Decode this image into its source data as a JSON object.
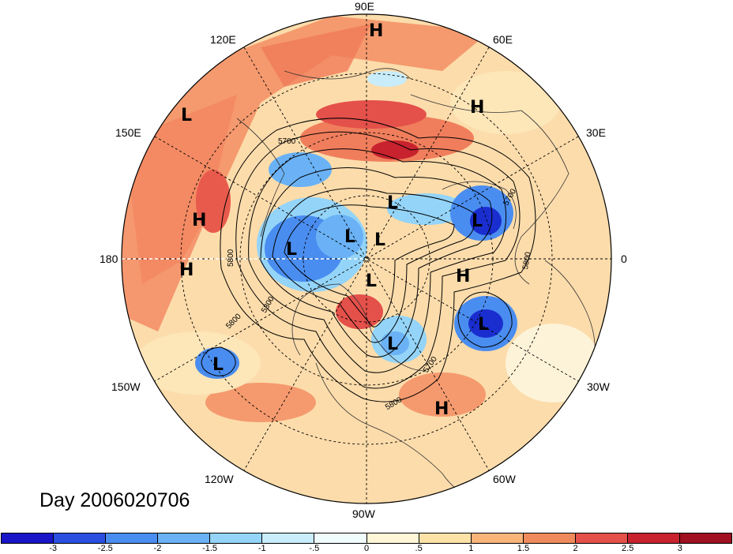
{
  "title": "Day 2006020706",
  "lon_labels": {
    "n90e": "90E",
    "n120e": "120E",
    "n60e": "60E",
    "n150e": "150E",
    "n30e": "30E",
    "n180": "180",
    "n0": "0",
    "n150w": "150W",
    "n30w": "30W",
    "n120w": "120W",
    "n60w": "60W",
    "n90w": "90W"
  },
  "pressure_centers": {
    "h1": "H",
    "h2": "H",
    "h3": "H",
    "h4": "H",
    "h5": "H",
    "h6": "H",
    "l1": "L",
    "l2": "L",
    "l3": "L",
    "l4": "L",
    "l5": "L",
    "l6": "L",
    "l7": "L",
    "l8": "L",
    "l9": "L",
    "l10": "L"
  },
  "contour_labels": {
    "c5700a": "5700",
    "c5800a": "5800",
    "c5300": "5300",
    "c5800b": "5800",
    "c5700b": "5700",
    "c5800c": "5800",
    "c5700c": "5700",
    "c5800d": "5800"
  },
  "colorbar": {
    "colors": [
      "#1a14c8",
      "#2a4fe0",
      "#4a8df0",
      "#6ab2f5",
      "#94d4f8",
      "#c8ecfa",
      "#f0fbfc",
      "#fff6d8",
      "#fde2a8",
      "#f9b47a",
      "#f08a5c",
      "#e4504a",
      "#c8222e",
      "#a01020"
    ],
    "labels": [
      "-3",
      "-2.5",
      "-2",
      "-1.5",
      "-1",
      "-.5",
      "0",
      ".5",
      "1",
      "1.5",
      "2",
      "2.5",
      "3"
    ]
  },
  "colors": {
    "warm": "#f7a57a",
    "warm_light": "#fde6b8",
    "cold": "#4a8ff0",
    "cold_dark": "#1a2ed0"
  }
}
